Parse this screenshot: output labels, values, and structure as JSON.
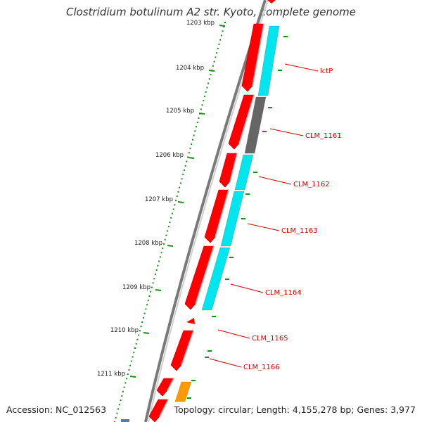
{
  "header": {
    "title": "Clostridium botulinum A2 str. Kyoto, complete genome"
  },
  "footer": {
    "accession": "Accession: NC_012563",
    "summary": "Topology: circular; Length: 4,155,278 bp; Genes: 3,977"
  },
  "colors": {
    "backbone": "#7a7a7a",
    "gene_red": "#ff0000",
    "cds_cyan": "#00e5ee",
    "cds_gray": "#666666",
    "cds_orange": "#ff9900",
    "tick_green": "#1a8a1a",
    "label_red": "#d40000"
  },
  "ruler": {
    "unit": "kbp",
    "labels": [
      "1203 kbp",
      "1204 kbp",
      "1205 kbp",
      "1206 kbp",
      "1207 kbp",
      "1208 kbp",
      "1209 kbp",
      "1210 kbp",
      "1211 kbp"
    ]
  },
  "genes": [
    "lctP",
    "CLM_1161",
    "CLM_1162",
    "CLM_1163",
    "CLM_1164",
    "CLM_1165",
    "CLM_1166"
  ]
}
